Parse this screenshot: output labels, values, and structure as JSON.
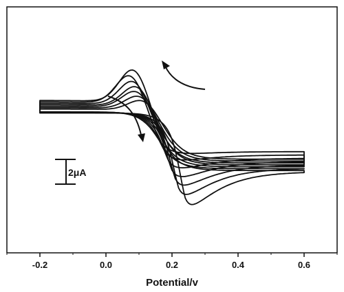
{
  "chart_data": {
    "type": "line",
    "title": "",
    "xlabel": "Potential/v",
    "ylabel": "",
    "xlim": [
      -0.3,
      0.7
    ],
    "ylim": [
      -14,
      12
    ],
    "x_ticks": [
      "-0.2",
      "0.0",
      "0.2",
      "0.4",
      "0.6"
    ],
    "scale_bar_label": "2μA",
    "scale_bar_value_uA": 2,
    "grid": false,
    "series_color": "#111111",
    "series": [
      {
        "peak_a": [
          0.12,
          3.0
        ],
        "peak_c": [
          0.17,
          -4.1
        ]
      },
      {
        "peak_a": [
          0.11,
          3.55
        ],
        "peak_c": [
          0.18,
          -5.25
        ]
      },
      {
        "peak_a": [
          0.1,
          4.15
        ],
        "peak_c": [
          0.19,
          -6.5
        ]
      },
      {
        "peak_a": [
          0.1,
          4.75
        ],
        "peak_c": [
          0.2,
          -7.8
        ]
      },
      {
        "peak_a": [
          0.09,
          5.4
        ],
        "peak_c": [
          0.21,
          -9.0
        ]
      },
      {
        "peak_a": [
          0.08,
          6.1
        ],
        "peak_c": [
          0.22,
          -10.3
        ]
      },
      {
        "peak_a": [
          0.09,
          6.8
        ],
        "peak_c": [
          0.24,
          -11.7
        ]
      }
    ]
  }
}
